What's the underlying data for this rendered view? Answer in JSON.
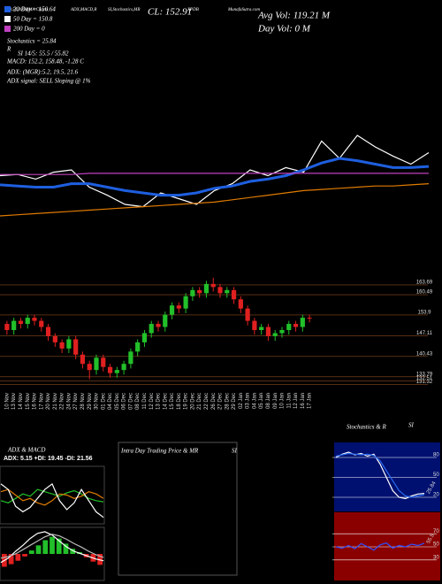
{
  "header": {
    "top": [
      "20,50,200 EMA Charts",
      "ADX,MACD,R",
      "SI,Stochastics,MR",
      "XPDB",
      "MunafaSutra.com"
    ],
    "close": "CL: 152.91",
    "avg_vol": "Avg Vol: 119.21 M",
    "day_vol": "Day Vol: 0  M",
    "legend": [
      "20 Day = 150.64",
      "50 Day = 150.8",
      "200 Day = 0"
    ],
    "info": [
      "Stochastics = 25.84",
      "R",
      "SI 14/5: 55.5 / 55.82",
      "MACD: 152.2, 158.48, -1.28 C",
      "ADX:                (MGR):5.2, 19.5, 21.6",
      "ADX  signal: SELL Sloping @ 1%"
    ],
    "intra": [
      "Intra Day Trading Price & MR",
      "SI"
    ]
  },
  "chart_data": [
    {
      "type": "line",
      "ylim": [
        0,
        100
      ],
      "series": [
        {
          "color": "#ffffff",
          "values": [
            55,
            56,
            52,
            58,
            60,
            45,
            38,
            30,
            28,
            40,
            35,
            30,
            42,
            48,
            60,
            55,
            62,
            58,
            85,
            70,
            90,
            80,
            72,
            65,
            75
          ]
        },
        {
          "color": "#1e5fe0",
          "values": [
            47,
            46,
            45,
            45,
            48,
            48,
            45,
            42,
            40,
            38,
            38,
            40,
            44,
            46,
            50,
            52,
            55,
            60,
            66,
            70,
            68,
            65,
            62,
            62,
            63
          ]
        },
        {
          "color": "#e07b00",
          "values": [
            20,
            21,
            22,
            23,
            24,
            25,
            26,
            27,
            28,
            29,
            30,
            31,
            32,
            34,
            36,
            38,
            40,
            42,
            43,
            44,
            45,
            46,
            46,
            47,
            48
          ]
        },
        {
          "color": "#c040c0",
          "values": [
            56,
            56,
            56,
            56,
            56,
            57,
            57,
            57,
            57,
            57,
            57,
            57,
            57,
            57,
            57,
            57,
            57,
            57,
            57,
            57,
            57,
            57,
            57,
            57,
            57
          ]
        }
      ]
    },
    {
      "type": "candlestick",
      "up_color": "#22c02a",
      "down_color": "#e02020",
      "grid_color": "#8a4a20",
      "categories": [
        "10 Nov",
        "13 Nov",
        "14 Nov",
        "15 Nov",
        "16 Nov",
        "17 Nov",
        "20 Nov",
        "21 Nov",
        "22 Nov",
        "24 Nov",
        "27 Nov",
        "28 Nov",
        "29 Nov",
        "30 Nov",
        "01 Dec",
        "04 Dec",
        "05 Dec",
        "06 Dec",
        "07 Dec",
        "08 Dec",
        "11 Dec",
        "12 Dec",
        "13 Dec",
        "14 Dec",
        "15 Dec",
        "18 Dec",
        "19 Dec",
        "20 Dec",
        "21 Dec",
        "22 Dec",
        "26 Dec",
        "27 Dec",
        "28 Dec",
        "29 Dec",
        "02 Jan",
        "03 Jan",
        "04 Jan",
        "05 Jan",
        "08 Jan",
        "09 Jan",
        "10 Jan",
        "11 Jan",
        "12 Jan",
        "16 Jan",
        "17 Jan"
      ],
      "open": [
        151,
        149,
        152,
        151,
        153,
        152,
        150,
        147,
        145,
        143,
        146,
        141,
        138,
        136,
        140,
        137,
        135,
        136,
        138,
        142,
        145,
        148,
        151,
        150,
        154,
        157,
        156,
        160,
        162,
        161,
        164,
        163,
        161,
        162,
        159,
        156,
        152,
        149,
        150,
        147,
        148,
        149,
        151,
        150,
        153
      ],
      "high": [
        152,
        153,
        153,
        154,
        154,
        153,
        151,
        148,
        146,
        147,
        147,
        142,
        139,
        141,
        141,
        138,
        137,
        139,
        143,
        146,
        149,
        152,
        152,
        155,
        158,
        158,
        161,
        163,
        163,
        165,
        166,
        164,
        163,
        163,
        160,
        157,
        153,
        151,
        151,
        149,
        150,
        152,
        152,
        154,
        154
      ],
      "low": [
        147.5,
        147.5,
        149.5,
        149.5,
        150.5,
        148.5,
        145.5,
        143.5,
        141.5,
        141.5,
        139.5,
        136.5,
        133,
        134.5,
        135.5,
        133.5,
        133.5,
        134.5,
        136.5,
        140.5,
        143.5,
        146.5,
        148.5,
        148.5,
        152.5,
        154.5,
        154.5,
        158.5,
        159.5,
        159.5,
        161.5,
        159.5,
        159.5,
        157.5,
        154.5,
        150.5,
        147.5,
        147.5,
        145.5,
        145.5,
        146.5,
        147.5,
        148.5,
        148.5,
        151.5
      ],
      "close": [
        149,
        152,
        151,
        153,
        152,
        150,
        147,
        145,
        143,
        146,
        141,
        138,
        136,
        140,
        137,
        135,
        136,
        138,
        142,
        145,
        148,
        151,
        150,
        154,
        157,
        156,
        160,
        162,
        161,
        164,
        163,
        161,
        162,
        159,
        156,
        152,
        149,
        150,
        147,
        148,
        149,
        151,
        150,
        153,
        152.91
      ],
      "ylim": [
        130,
        168
      ],
      "yticks": [
        163.69,
        160.49,
        153.9,
        147.11,
        140.43,
        133.79,
        132.51,
        131.32
      ]
    },
    {
      "type": "line",
      "title": "ADX & MACD",
      "subtitle": "ADX: 5.15 +DI: 19.45 -DI: 21.56",
      "ylim": [
        0,
        50
      ],
      "series": [
        {
          "color": "#22c02a",
          "values": [
            20,
            18,
            22,
            26,
            24,
            30,
            28,
            26,
            24,
            27,
            29,
            26,
            22,
            20,
            19
          ]
        },
        {
          "color": "#e07b00",
          "values": [
            28,
            30,
            25,
            20,
            22,
            18,
            16,
            20,
            26,
            25,
            22,
            24,
            28,
            26,
            22
          ]
        },
        {
          "color": "#ffffff",
          "values": [
            35,
            30,
            15,
            10,
            14,
            22,
            30,
            35,
            20,
            12,
            18,
            30,
            20,
            10,
            5
          ]
        }
      ]
    },
    {
      "type": "bar",
      "up_color": "#22c02a",
      "down_color": "#e02020",
      "ylim": [
        -3,
        3
      ],
      "values": [
        -1.5,
        -1.2,
        -0.8,
        -0.3,
        0.4,
        1.0,
        1.6,
        2.0,
        1.8,
        1.2,
        0.6,
        0.2,
        -0.4,
        -0.9,
        -1.28
      ],
      "series": [
        {
          "color": "#ffffff",
          "values": [
            -1,
            -0.5,
            0.3,
            1,
            1.8,
            2.4,
            2.6,
            2.2,
            1.5,
            0.8,
            0.3,
            0,
            -0.3,
            -0.6,
            -0.8
          ]
        },
        {
          "color": "#bbbbbb",
          "values": [
            -0.5,
            -0.3,
            0,
            0.5,
            1.0,
            1.5,
            2.0,
            2.3,
            2.1,
            1.7,
            1.2,
            0.8,
            0.3,
            -0.1,
            -0.4
          ]
        }
      ]
    },
    {
      "type": "line",
      "title": "Stochastics & R",
      "subtitle": "SI",
      "background": "#001070",
      "ylim": [
        0,
        100
      ],
      "yticks": [
        20,
        50,
        80
      ],
      "marker": 25.84,
      "series": [
        {
          "color": "#ffffff",
          "values": [
            80,
            85,
            88,
            84,
            86,
            82,
            85,
            70,
            50,
            30,
            20,
            18,
            22,
            25,
            25.84
          ]
        },
        {
          "color": "#2a6af0",
          "values": [
            82,
            84,
            86,
            85,
            84,
            85,
            83,
            75,
            60,
            45,
            30,
            22,
            20,
            22,
            24
          ]
        }
      ]
    },
    {
      "type": "line",
      "background": "#8a0000",
      "ylim": [
        0,
        100
      ],
      "yticks": [
        30,
        50,
        70
      ],
      "marker": 55.5,
      "series": [
        {
          "color": "#3050ff",
          "values": [
            50,
            48,
            52,
            47,
            55,
            50,
            45,
            53,
            56,
            48,
            52,
            50,
            54,
            52,
            55.5
          ]
        }
      ]
    }
  ]
}
